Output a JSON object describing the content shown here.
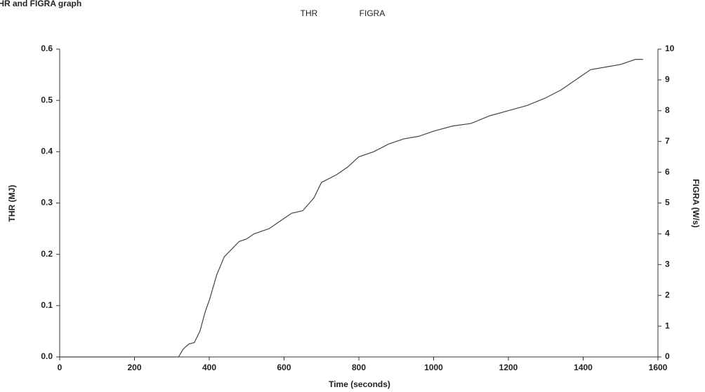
{
  "chart_data": {
    "type": "line",
    "title": "THR and FIGRA graph",
    "legend": [
      "THR",
      "FIGRA"
    ],
    "x_label": "Time (seconds)",
    "y_label": "THR (MJ)",
    "y2_label": "FIGRA (W/s)",
    "x": [
      0,
      300,
      318,
      330,
      345,
      360,
      375,
      390,
      400,
      420,
      440,
      460,
      480,
      500,
      520,
      560,
      600,
      620,
      650,
      680,
      700,
      740,
      770,
      800,
      840,
      880,
      920,
      960,
      1000,
      1050,
      1100,
      1150,
      1200,
      1250,
      1300,
      1340,
      1380,
      1420,
      1460,
      1500,
      1540,
      1560
    ],
    "series": [
      {
        "name": "THR",
        "color": "#444444",
        "values": [
          0,
          0,
          0,
          0.015,
          0.025,
          0.028,
          0.05,
          0.09,
          0.11,
          0.16,
          0.195,
          0.21,
          0.225,
          0.23,
          0.24,
          0.25,
          0.27,
          0.28,
          0.285,
          0.31,
          0.34,
          0.355,
          0.37,
          0.39,
          0.4,
          0.415,
          0.425,
          0.43,
          0.44,
          0.45,
          0.455,
          0.47,
          0.48,
          0.49,
          0.505,
          0.52,
          0.54,
          0.56,
          0.565,
          0.57,
          0.58,
          0.58
        ]
      }
    ],
    "xlim": [
      0,
      1600
    ],
    "xticks": [
      0,
      200,
      400,
      600,
      800,
      1000,
      1200,
      1400,
      1600
    ],
    "ylim": [
      0,
      0.6
    ],
    "yticks": [
      {
        "value": 0,
        "label": "0.0"
      },
      0.1,
      0.2,
      0.3,
      0.4,
      0.5,
      0.6
    ],
    "y2lim": [
      0,
      10
    ],
    "y2ticks": [
      0,
      1,
      2,
      3,
      4,
      5,
      6,
      7,
      8,
      9,
      10
    ]
  }
}
